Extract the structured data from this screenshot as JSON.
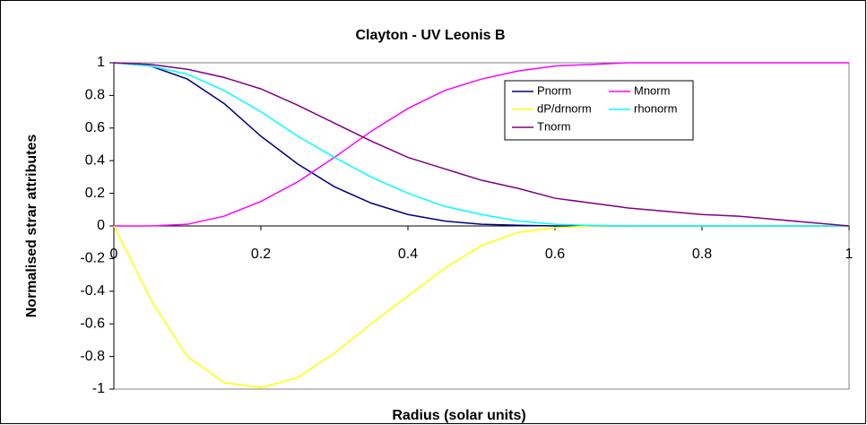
{
  "chart_data": {
    "type": "line",
    "title": "Clayton - UV Leonis B",
    "x_label": "Radius (solar units)",
    "y_label": "Normalised strar attributes",
    "x": [
      0,
      0.05,
      0.1,
      0.15,
      0.2,
      0.25,
      0.3,
      0.35,
      0.4,
      0.45,
      0.5,
      0.55,
      0.6,
      0.65,
      0.7,
      0.75,
      0.8,
      0.85,
      0.9,
      0.95,
      1
    ],
    "series": [
      {
        "name": "Pnorm",
        "color": "#000080",
        "values": [
          1,
          0.98,
          0.9,
          0.75,
          0.55,
          0.38,
          0.24,
          0.14,
          0.07,
          0.03,
          0.01,
          0.004,
          0,
          0,
          0,
          0,
          0,
          0,
          0,
          0,
          0
        ]
      },
      {
        "name": "Mnorm",
        "color": "#ff00ff",
        "values": [
          0,
          0,
          0.01,
          0.06,
          0.15,
          0.27,
          0.42,
          0.58,
          0.72,
          0.83,
          0.9,
          0.95,
          0.98,
          0.99,
          1,
          1,
          1,
          1,
          1,
          1,
          1
        ]
      },
      {
        "name": "dP/drnorm",
        "color": "#ffff00",
        "values": [
          0,
          -0.45,
          -0.8,
          -0.96,
          -0.99,
          -0.93,
          -0.78,
          -0.6,
          -0.43,
          -0.26,
          -0.12,
          -0.04,
          -0.01,
          0,
          0,
          0,
          0,
          0,
          0,
          0,
          0
        ]
      },
      {
        "name": "rhonorm",
        "color": "#00ffff",
        "values": [
          1,
          0.98,
          0.93,
          0.83,
          0.7,
          0.55,
          0.42,
          0.3,
          0.2,
          0.12,
          0.07,
          0.03,
          0.01,
          0.003,
          0,
          0,
          0,
          0,
          0,
          0,
          0
        ]
      },
      {
        "name": "Tnorm",
        "color": "#800080",
        "values": [
          1,
          0.99,
          0.96,
          0.91,
          0.84,
          0.74,
          0.63,
          0.52,
          0.42,
          0.35,
          0.28,
          0.23,
          0.17,
          0.14,
          0.11,
          0.09,
          0.07,
          0.06,
          0.04,
          0.02,
          0
        ]
      }
    ],
    "xlim": [
      0,
      1
    ],
    "xticks": [
      0,
      0.2,
      0.4,
      0.6,
      0.8,
      1
    ],
    "ylim": [
      -1,
      1
    ],
    "yticks": [
      -1,
      -0.8,
      -0.6,
      -0.4,
      -0.2,
      0,
      0.2,
      0.4,
      0.6,
      0.8,
      1
    ],
    "grid": false,
    "legend": "upper right"
  }
}
